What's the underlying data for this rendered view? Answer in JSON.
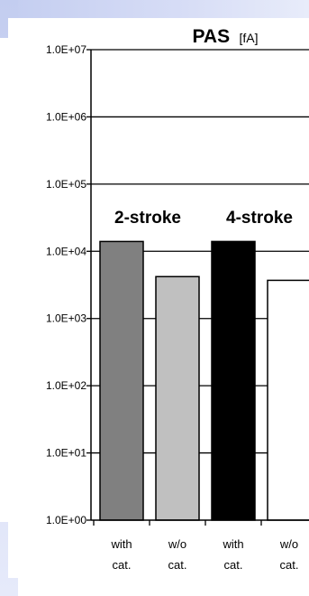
{
  "chart_data": {
    "type": "bar",
    "title": "PAS",
    "title_unit": "[fA]",
    "yscale": "log",
    "ylim": [
      1,
      10000000
    ],
    "yticks": [
      "1.0E+00",
      "1.0E+01",
      "1.0E+02",
      "1.0E+03",
      "1.0E+04",
      "1.0E+05",
      "1.0E+06",
      "1.0E+07"
    ],
    "grid": true,
    "groups": [
      "2-stroke",
      "4-stroke"
    ],
    "categories": [
      [
        "with",
        "cat."
      ],
      [
        "w/o",
        "cat."
      ],
      [
        "with",
        "cat."
      ],
      [
        "w/o",
        "cat."
      ]
    ],
    "values": [
      14000,
      4200,
      14000,
      3700
    ],
    "colors": [
      "#808080",
      "#c0c0c0",
      "#000000",
      "#ffffff"
    ]
  }
}
